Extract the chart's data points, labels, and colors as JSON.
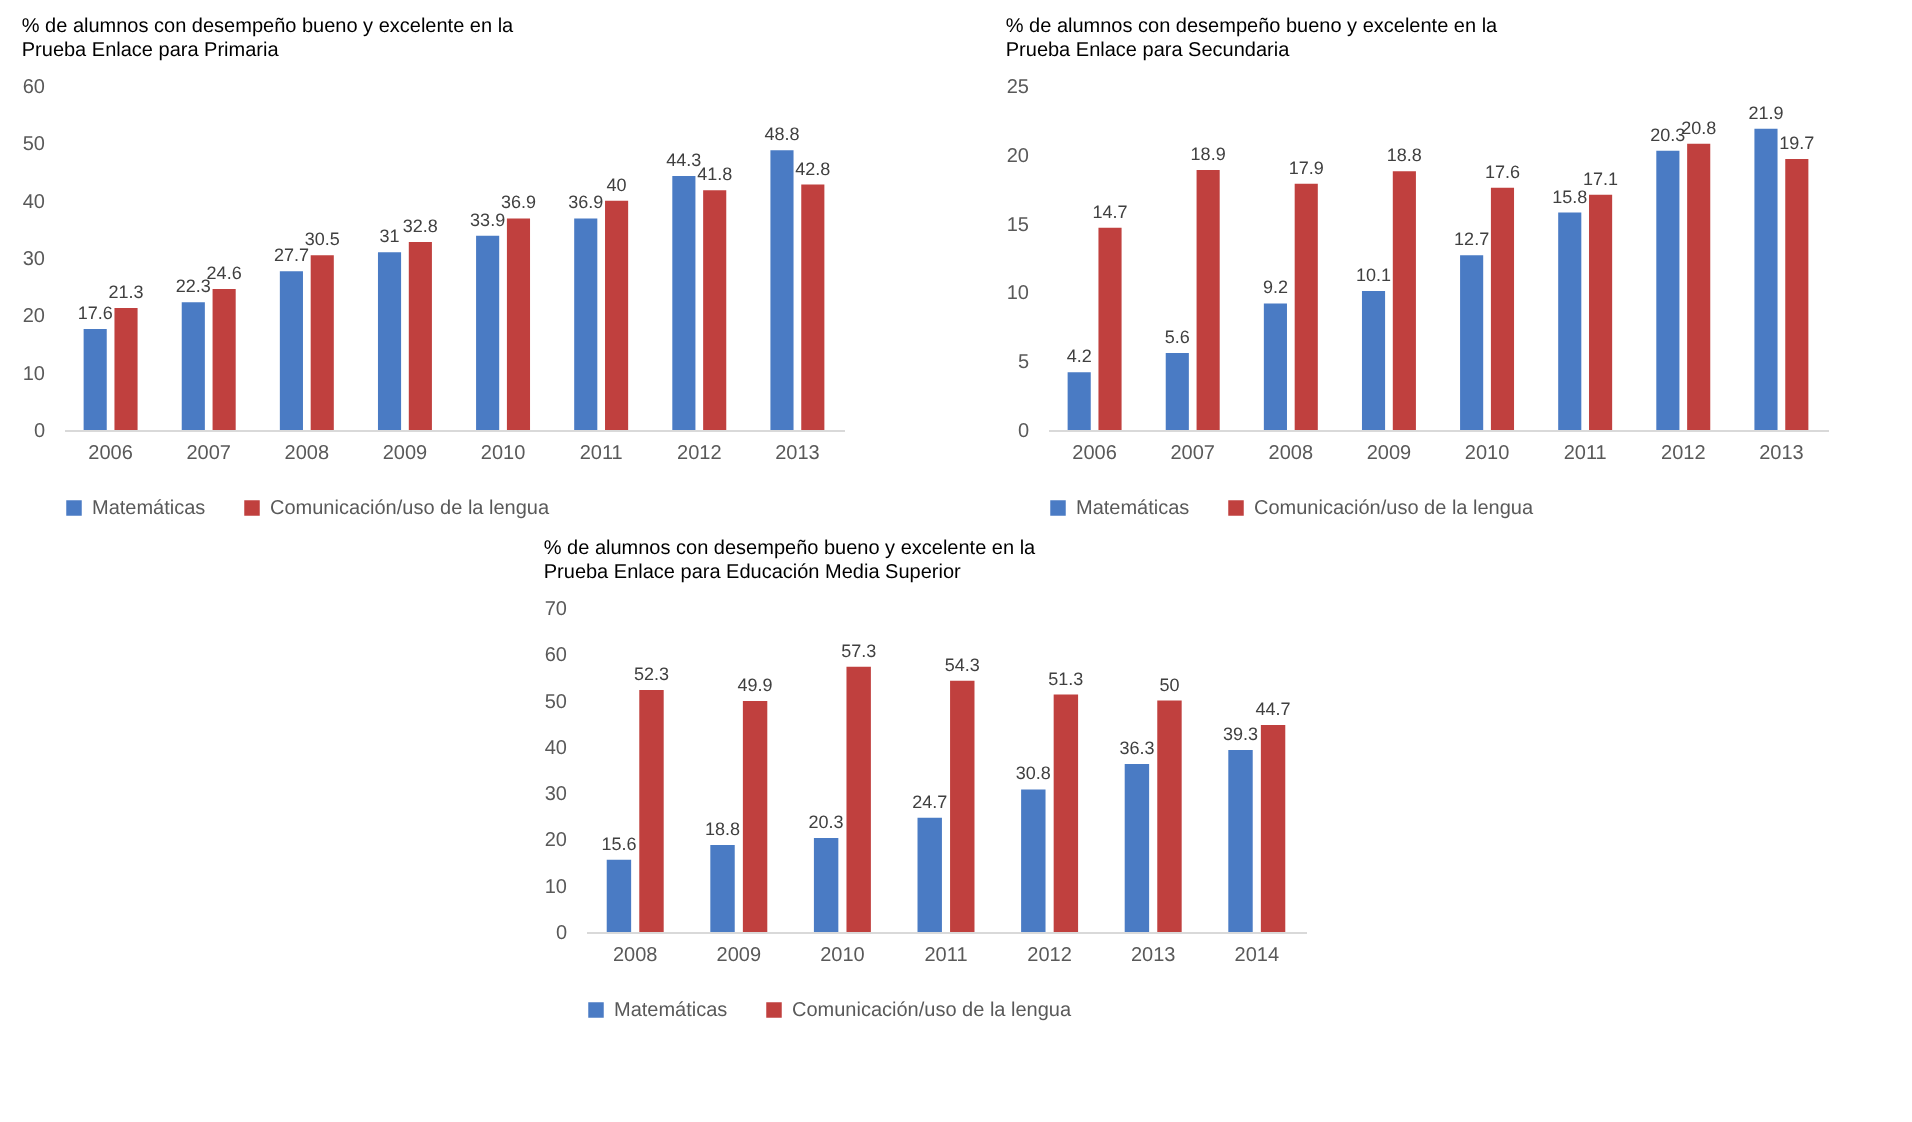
{
  "chart_data": [
    {
      "type": "bar",
      "title": "% de alumnos con desempeño bueno y excelente en la Prueba Enlace para Primaria",
      "categories": [
        "2006",
        "2007",
        "2008",
        "2009",
        "2010",
        "2011",
        "2012",
        "2013"
      ],
      "series": [
        {
          "name": "Matemáticas",
          "color": "#4a7bc4",
          "values": [
            17.6,
            22.3,
            27.7,
            31,
            33.9,
            36.9,
            44.3,
            48.8
          ]
        },
        {
          "name": "Comunicación/uso de la lengua",
          "color": "#c0403e",
          "values": [
            21.3,
            24.6,
            30.5,
            32.8,
            36.9,
            40,
            41.8,
            42.8
          ]
        }
      ],
      "ylim": [
        0,
        60
      ],
      "yticks": [
        0,
        10,
        20,
        30,
        40,
        50,
        60
      ],
      "data_labels": true,
      "legend": "bottom"
    },
    {
      "type": "bar",
      "title": "% de alumnos con desempeño bueno y excelente en la Prueba Enlace para Secundaria",
      "categories": [
        "2006",
        "2007",
        "2008",
        "2009",
        "2010",
        "2011",
        "2012",
        "2013"
      ],
      "series": [
        {
          "name": "Matemáticas",
          "color": "#4a7bc4",
          "values": [
            4.2,
            5.6,
            9.2,
            10.1,
            12.7,
            15.8,
            20.3,
            21.9
          ]
        },
        {
          "name": "Comunicación/uso de la lengua",
          "color": "#c0403e",
          "values": [
            14.7,
            18.9,
            17.9,
            18.8,
            17.6,
            17.1,
            20.8,
            19.7
          ]
        }
      ],
      "ylim": [
        0,
        25
      ],
      "yticks": [
        0,
        5,
        10,
        15,
        20,
        25
      ],
      "data_labels": true,
      "legend": "bottom"
    },
    {
      "type": "bar",
      "title": "% de alumnos con desempeño bueno y excelente en la Prueba Enlace para Educación Media Superior",
      "categories": [
        "2008",
        "2009",
        "2010",
        "2011",
        "2012",
        "2013",
        "2014"
      ],
      "series": [
        {
          "name": "Matemáticas",
          "color": "#4a7bc4",
          "values": [
            15.6,
            18.8,
            20.3,
            24.7,
            30.8,
            36.3,
            39.3
          ]
        },
        {
          "name": "Comunicación/uso de la lengua",
          "color": "#c0403e",
          "values": [
            52.3,
            49.9,
            57.3,
            54.3,
            51.3,
            50,
            44.7
          ]
        }
      ],
      "ylim": [
        0,
        70
      ],
      "yticks": [
        0,
        10,
        20,
        30,
        40,
        50,
        60,
        70
      ],
      "data_labels": true,
      "legend": "bottom"
    }
  ]
}
